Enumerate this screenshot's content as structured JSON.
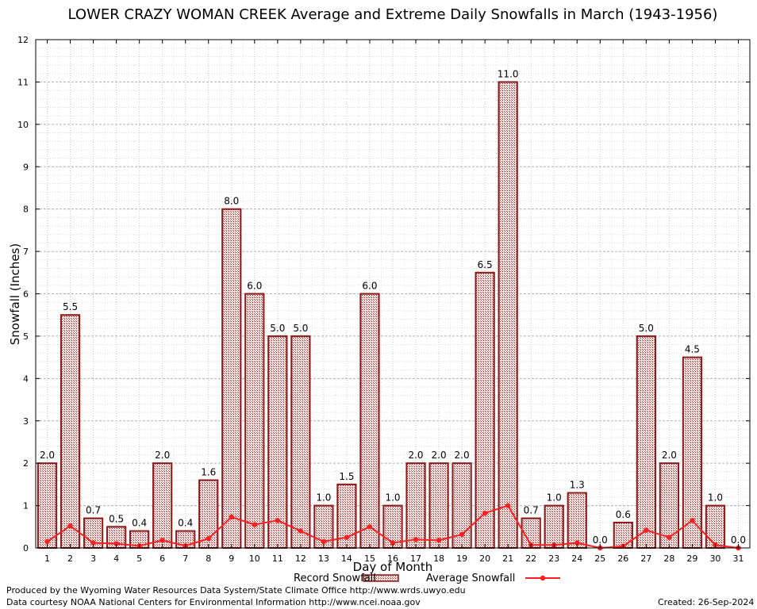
{
  "chart_data": {
    "type": "bar",
    "title": "LOWER CRAZY WOMAN CREEK Average and Extreme Daily Snowfalls in March (1943-1956)",
    "xlabel": "Day of Month",
    "ylabel": "Snowfall (Inches)",
    "ylim": [
      0,
      12
    ],
    "yticks": [
      0,
      1,
      2,
      3,
      4,
      5,
      6,
      7,
      8,
      9,
      10,
      11,
      12
    ],
    "categories": [
      "1",
      "2",
      "3",
      "4",
      "5",
      "6",
      "7",
      "8",
      "9",
      "10",
      "11",
      "12",
      "13",
      "14",
      "15",
      "16",
      "17",
      "18",
      "19",
      "20",
      "21",
      "22",
      "23",
      "24",
      "25",
      "26",
      "27",
      "28",
      "29",
      "30",
      "31"
    ],
    "series": [
      {
        "name": "Record Snowfall",
        "type": "bar",
        "color": "#8b1a1a",
        "values": [
          2.0,
          5.5,
          0.7,
          0.5,
          0.4,
          2.0,
          0.4,
          1.6,
          8.0,
          6.0,
          5.0,
          5.0,
          1.0,
          1.5,
          6.0,
          1.0,
          2.0,
          2.0,
          2.0,
          6.5,
          11.0,
          0.7,
          1.0,
          1.3,
          0.0,
          0.6,
          5.0,
          2.0,
          4.5,
          1.0,
          0.0
        ],
        "labels": [
          "2.0",
          "5.5",
          "0.7",
          "0.5",
          "0.4",
          "2.0",
          "0.4",
          "1.6",
          "8.0",
          "6.0",
          "5.0",
          "5.0",
          "1.0",
          "1.5",
          "6.0",
          "1.0",
          "2.0",
          "2.0",
          "2.0",
          "6.5",
          "11.0",
          "0.7",
          "1.0",
          "1.3",
          "0.0",
          "0.6",
          "5.0",
          "2.0",
          "4.5",
          "1.0",
          "0.0"
        ]
      },
      {
        "name": "Average Snowfall",
        "type": "line",
        "color": "#ff2020",
        "values": [
          0.15,
          0.52,
          0.12,
          0.1,
          0.05,
          0.18,
          0.05,
          0.22,
          0.73,
          0.55,
          0.65,
          0.4,
          0.15,
          0.25,
          0.5,
          0.12,
          0.2,
          0.18,
          0.32,
          0.82,
          1.0,
          0.07,
          0.07,
          0.12,
          0.0,
          0.04,
          0.42,
          0.25,
          0.65,
          0.07,
          0.0
        ]
      }
    ],
    "grid": true,
    "legend": "bottom-center"
  },
  "footer": {
    "produced_by": "Produced by the Wyoming Water Resources Data System/State Climate Office http://www.wrds.uwyo.edu",
    "courtesy": "Data courtesy NOAA National Centers for Environmental Information http://www.ncei.noaa.gov",
    "created": "Created:  26-Sep-2024"
  }
}
